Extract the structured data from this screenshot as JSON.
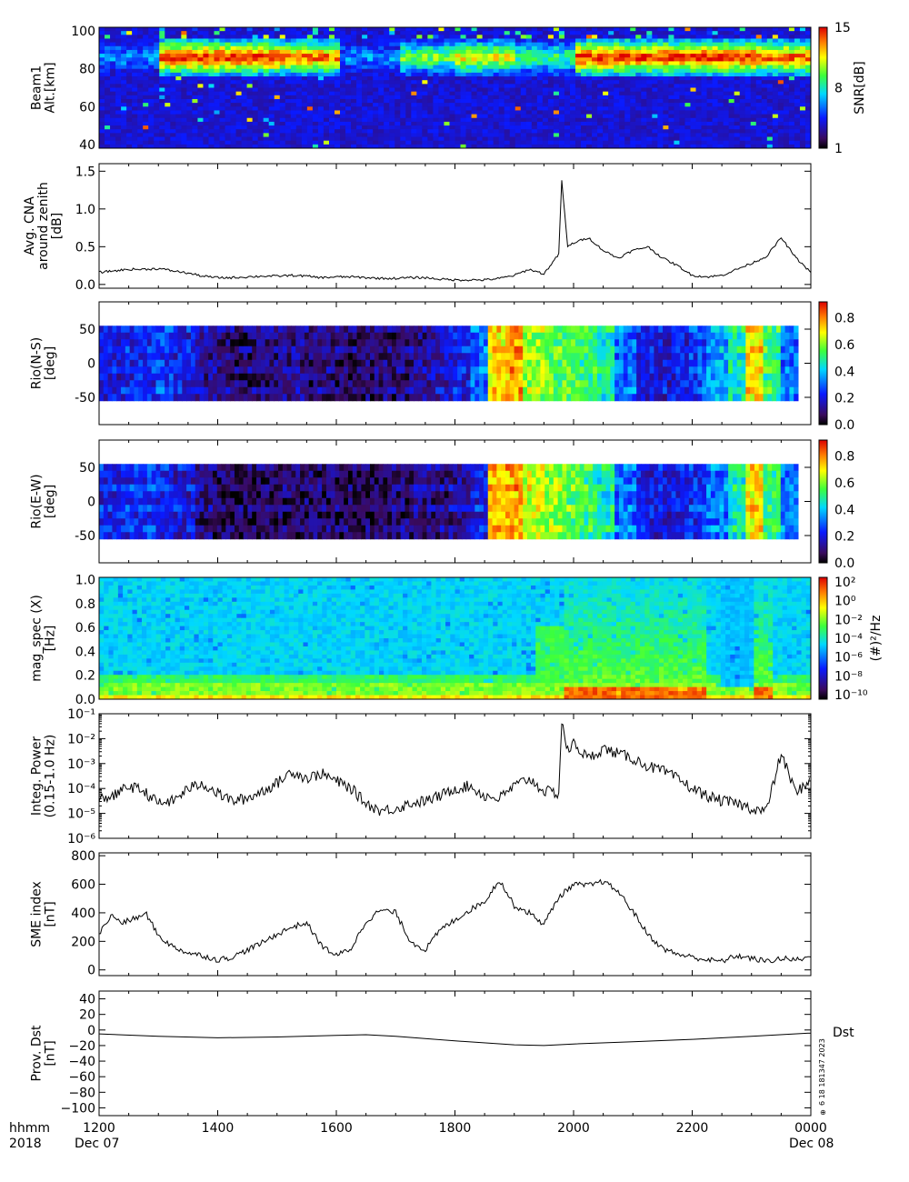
{
  "chart_data": [
    {
      "id": "beam",
      "type": "heatmap",
      "ylabel": [
        "Beam1",
        "Alt.[km]"
      ],
      "ylim": [
        38,
        102
      ],
      "yticks": [
        40,
        60,
        80,
        100
      ],
      "colorbar": {
        "label": "SNR[dB]",
        "ticks": [
          1,
          8,
          15
        ],
        "range": [
          1,
          15
        ]
      },
      "bands": [
        {
          "name": "layer",
          "alt_center": 86,
          "thickness": 8,
          "intensity": [
            6,
            15,
            15,
            14,
            6,
            10,
            12,
            9,
            15,
            15,
            15,
            14
          ]
        }
      ],
      "background_level": 2.5
    },
    {
      "id": "cna",
      "type": "line",
      "ylabel": [
        "Avg. CNA",
        "around zenith",
        "[dB]"
      ],
      "ylim": [
        -0.05,
        1.6
      ],
      "yticks": [
        0.0,
        0.5,
        1.0,
        1.5
      ],
      "ytick_labels": [
        "0.0",
        "0.5",
        "1.0",
        "1.5"
      ],
      "x": [
        0,
        0.25,
        0.5,
        0.75,
        1.0,
        1.25,
        1.5,
        1.75,
        2.0,
        2.25,
        2.5,
        2.75,
        3.0,
        3.25,
        3.5,
        3.75,
        4.0,
        4.25,
        4.5,
        4.75,
        5.0,
        5.25,
        5.5,
        5.75,
        6.0,
        6.25,
        6.5,
        6.75,
        7.0,
        7.25,
        7.5,
        7.75,
        7.8,
        7.9,
        8.0,
        8.25,
        8.5,
        8.75,
        9.0,
        9.25,
        9.5,
        9.75,
        10.0,
        10.25,
        10.5,
        10.75,
        11.0,
        11.25,
        11.5,
        11.75,
        12.0
      ],
      "values": [
        0.16,
        0.18,
        0.2,
        0.2,
        0.21,
        0.18,
        0.15,
        0.11,
        0.09,
        0.09,
        0.1,
        0.11,
        0.11,
        0.12,
        0.11,
        0.09,
        0.1,
        0.1,
        0.09,
        0.08,
        0.08,
        0.09,
        0.09,
        0.07,
        0.06,
        0.06,
        0.06,
        0.08,
        0.12,
        0.2,
        0.14,
        0.4,
        1.38,
        0.5,
        0.55,
        0.62,
        0.45,
        0.35,
        0.45,
        0.5,
        0.35,
        0.25,
        0.12,
        0.1,
        0.12,
        0.2,
        0.28,
        0.37,
        0.62,
        0.35,
        0.16
      ]
    },
    {
      "id": "rio_ns",
      "type": "heatmap",
      "ylabel": [
        "Rio(N-S)",
        "[deg]"
      ],
      "ylim": [
        -90,
        90
      ],
      "yticks": [
        -50,
        0,
        50
      ],
      "data_range": [
        -55,
        55
      ],
      "colorbar": {
        "ticks": [
          0.0,
          0.2,
          0.4,
          0.6,
          0.8
        ],
        "tick_labels": [
          "0.0",
          "0.2",
          "0.4",
          "0.6",
          "0.8"
        ],
        "range": [
          0,
          0.92
        ]
      },
      "profile": [
        0.18,
        0.2,
        0.22,
        0.25,
        0.2,
        0.12,
        0.1,
        0.08,
        0.09,
        0.1,
        0.11,
        0.09,
        0.08,
        0.07,
        0.08,
        0.09,
        0.1,
        0.12,
        0.15,
        0.2,
        0.3,
        0.7,
        0.75,
        0.6,
        0.55,
        0.55,
        0.5,
        0.45,
        0.3,
        0.2,
        0.18,
        0.2,
        0.25,
        0.35,
        0.45,
        0.7,
        0.5,
        0.3
      ]
    },
    {
      "id": "rio_ew",
      "type": "heatmap",
      "ylabel": [
        "Rio(E-W)",
        "[deg]"
      ],
      "ylim": [
        -90,
        90
      ],
      "yticks": [
        -50,
        0,
        50
      ],
      "data_range": [
        -55,
        55
      ],
      "colorbar": {
        "ticks": [
          0.0,
          0.2,
          0.4,
          0.6,
          0.8
        ],
        "tick_labels": [
          "0.0",
          "0.2",
          "0.4",
          "0.6",
          "0.8"
        ],
        "range": [
          0,
          0.92
        ]
      },
      "profile": [
        0.2,
        0.22,
        0.24,
        0.22,
        0.18,
        0.1,
        0.07,
        0.06,
        0.06,
        0.07,
        0.08,
        0.08,
        0.07,
        0.06,
        0.06,
        0.07,
        0.08,
        0.1,
        0.1,
        0.12,
        0.2,
        0.72,
        0.75,
        0.65,
        0.6,
        0.55,
        0.5,
        0.45,
        0.3,
        0.2,
        0.18,
        0.2,
        0.22,
        0.3,
        0.45,
        0.7,
        0.5,
        0.3
      ]
    },
    {
      "id": "magspec",
      "type": "heatmap",
      "ylabel": [
        "mag_spec (X)",
        "[Hz]"
      ],
      "ylim": [
        0,
        1.02
      ],
      "yticks": [
        0.0,
        0.2,
        0.4,
        0.6,
        0.8,
        1.0
      ],
      "ytick_labels": [
        "0.0",
        "0.2",
        "0.4",
        "0.6",
        "0.8",
        "1.0"
      ],
      "colorbar": {
        "label": "(#)²/Hz",
        "ticks": [
          "10²",
          "10⁰",
          "10⁻²",
          "10⁻⁴",
          "10⁻⁶",
          "10⁻⁸",
          "10⁻¹⁰"
        ]
      }
    },
    {
      "id": "power",
      "type": "line",
      "ylabel": [
        "Integ. Power",
        "(0.15-1.0 Hz)"
      ],
      "yscale": "log",
      "ylim_exp": [
        -6,
        -1
      ],
      "yticks": [
        "10⁻¹",
        "10⁻²",
        "10⁻³",
        "10⁻⁴",
        "10⁻⁵",
        "10⁻⁶"
      ],
      "x": [
        0,
        0.25,
        0.5,
        0.75,
        1.0,
        1.25,
        1.5,
        1.75,
        2.0,
        2.25,
        2.5,
        2.75,
        3.0,
        3.25,
        3.5,
        3.75,
        4.0,
        4.25,
        4.5,
        4.75,
        5.0,
        5.25,
        5.5,
        5.75,
        6.0,
        6.25,
        6.5,
        6.75,
        7.0,
        7.25,
        7.5,
        7.75,
        7.8,
        7.9,
        8.0,
        8.25,
        8.5,
        8.75,
        9.0,
        9.25,
        9.5,
        9.75,
        10.0,
        10.25,
        10.5,
        10.75,
        11.0,
        11.25,
        11.5,
        11.75,
        12.0
      ],
      "log_values": [
        -4.4,
        -4.3,
        -3.9,
        -4.1,
        -4.6,
        -4.5,
        -4.0,
        -3.8,
        -4.2,
        -4.5,
        -4.4,
        -4.1,
        -3.8,
        -3.3,
        -3.6,
        -3.4,
        -3.7,
        -4.0,
        -4.6,
        -4.9,
        -4.8,
        -4.6,
        -4.5,
        -4.3,
        -4.0,
        -3.9,
        -4.3,
        -4.4,
        -3.9,
        -3.6,
        -4.1,
        -4.2,
        -1.3,
        -2.5,
        -2.2,
        -2.8,
        -2.4,
        -2.6,
        -2.8,
        -3.1,
        -3.3,
        -3.6,
        -4.0,
        -4.3,
        -4.5,
        -4.6,
        -4.8,
        -4.9,
        -2.6,
        -4.2,
        -3.6
      ]
    },
    {
      "id": "sme",
      "type": "line",
      "ylabel": [
        "SME index",
        "[nT]"
      ],
      "ylim": [
        -40,
        820
      ],
      "yticks": [
        0,
        200,
        400,
        600,
        800
      ],
      "ytick_labels": [
        "0",
        "200",
        "400",
        "600",
        "800"
      ],
      "x": [
        0,
        0.2,
        0.4,
        0.6,
        0.8,
        1.0,
        1.25,
        1.5,
        1.75,
        2.0,
        2.25,
        2.5,
        2.75,
        3.0,
        3.25,
        3.5,
        3.75,
        4.0,
        4.25,
        4.5,
        4.75,
        5.0,
        5.25,
        5.5,
        5.75,
        6.0,
        6.25,
        6.5,
        6.75,
        7.0,
        7.25,
        7.5,
        7.75,
        8.0,
        8.25,
        8.5,
        8.75,
        9.0,
        9.25,
        9.5,
        9.75,
        10.0,
        10.25,
        10.5,
        10.75,
        11.0,
        11.25,
        11.5,
        11.75,
        12.0
      ],
      "values": [
        250,
        380,
        330,
        360,
        390,
        240,
        160,
        120,
        100,
        70,
        90,
        140,
        190,
        250,
        300,
        330,
        170,
        100,
        150,
        340,
        420,
        400,
        200,
        140,
        280,
        350,
        420,
        480,
        630,
        450,
        400,
        320,
        510,
        600,
        590,
        620,
        550,
        410,
        250,
        150,
        110,
        90,
        70,
        60,
        100,
        80,
        60,
        80,
        70,
        90
      ]
    },
    {
      "id": "dst",
      "type": "line",
      "ylabel": [
        "Prov. Dst",
        "[nT]"
      ],
      "ylim": [
        -110,
        50
      ],
      "yticks": [
        -100,
        -80,
        -60,
        -40,
        -20,
        0,
        20,
        40
      ],
      "ytick_labels": [
        "−100",
        "−80",
        "−60",
        "−40",
        "−20",
        "0",
        "20",
        "40"
      ],
      "x": [
        0,
        1,
        2,
        3,
        4,
        4.5,
        5,
        6,
        7,
        7.5,
        8,
        9,
        10,
        11,
        12
      ],
      "values": [
        -5,
        -8,
        -10,
        -9,
        -7,
        -6,
        -8,
        -14,
        -19,
        -20,
        -18,
        -15,
        -12,
        -8,
        -4
      ],
      "annotation": "Dst"
    }
  ],
  "xaxis": {
    "range": [
      0,
      12
    ],
    "major_ticks": [
      0,
      2,
      4,
      6,
      8,
      10,
      12
    ],
    "labels": [
      "1200",
      "1400",
      "1600",
      "1800",
      "2000",
      "2200",
      "0000"
    ],
    "row_label": "hhmm",
    "year_label": "2018",
    "start_date": "Dec 07",
    "end_date": "Dec 08"
  },
  "stamp": "6 18 181347 2023",
  "stamp_marker": "⊕"
}
